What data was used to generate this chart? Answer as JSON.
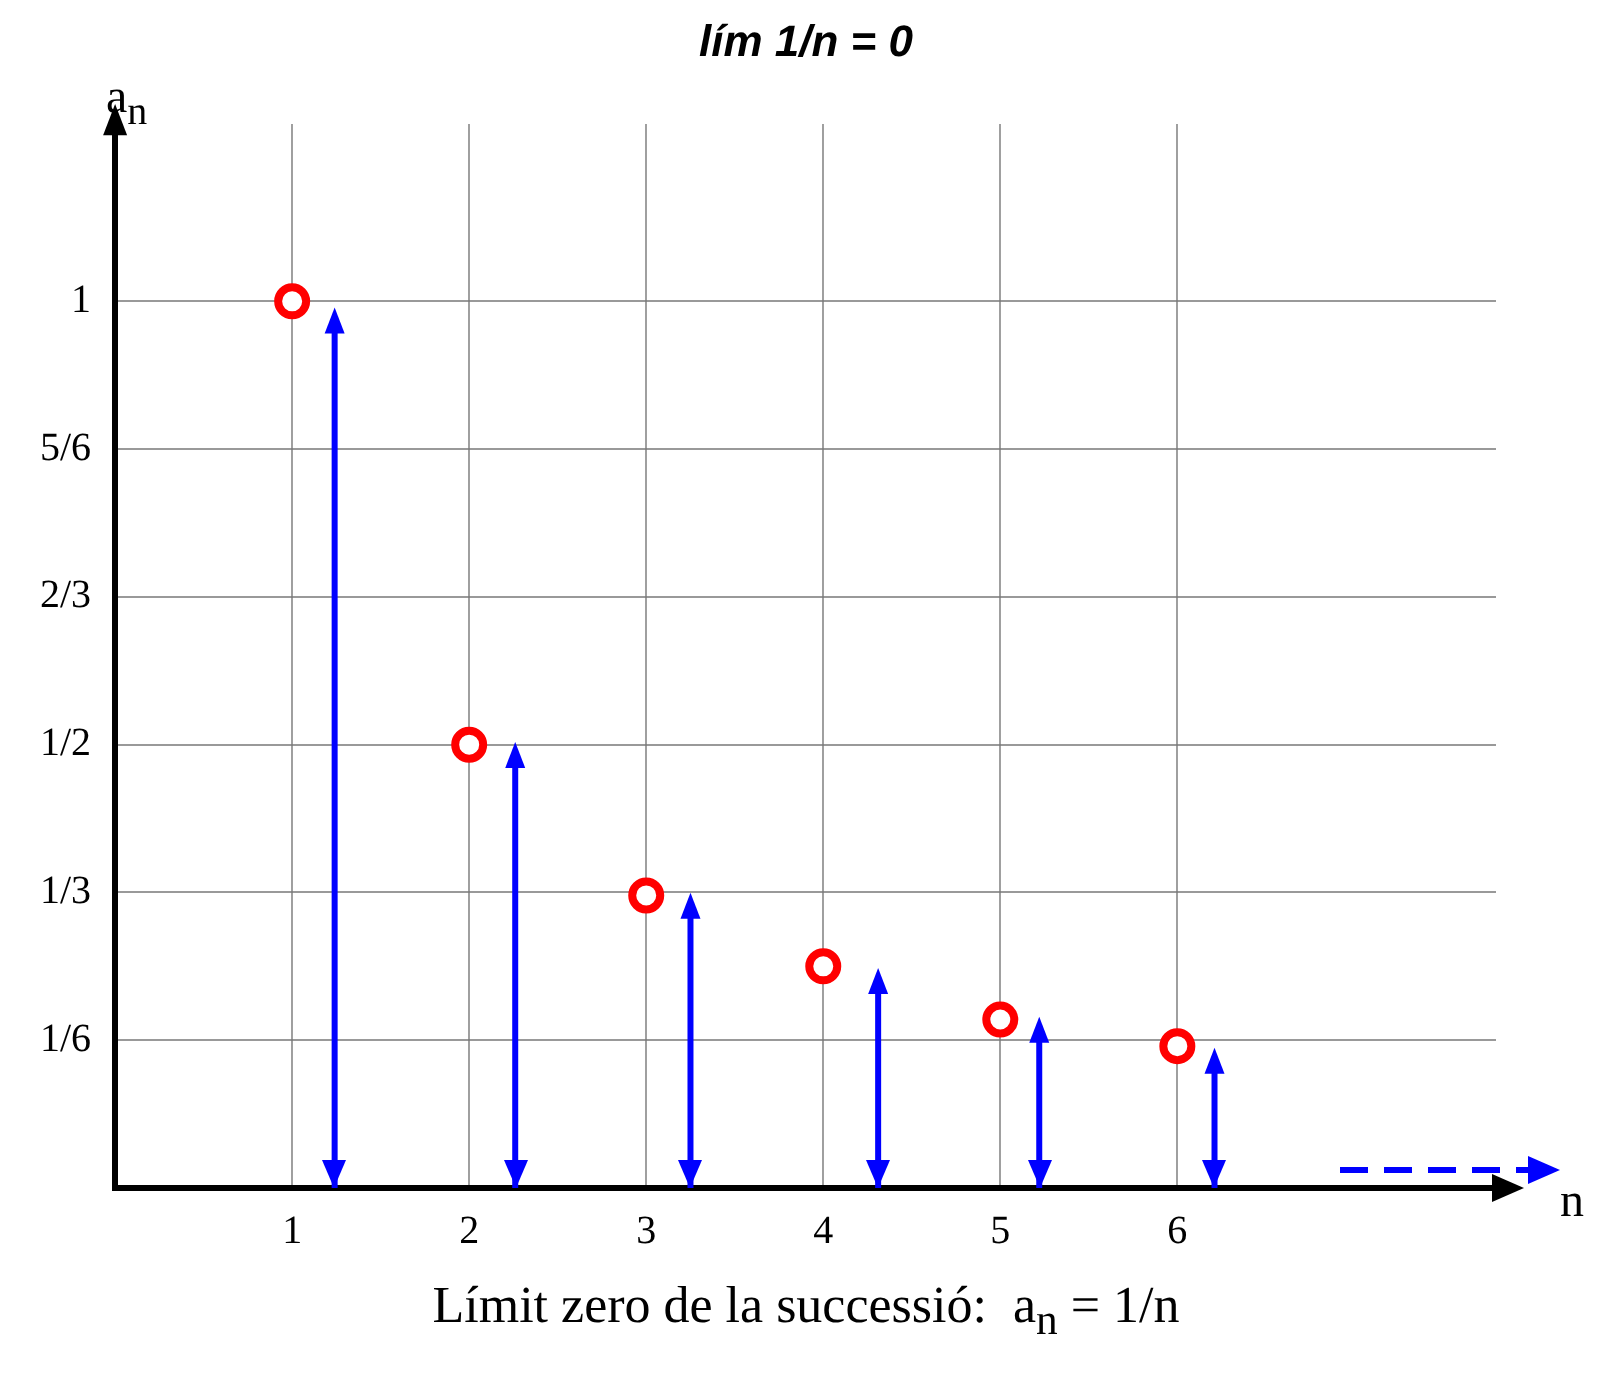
{
  "chart_data": {
    "type": "scatter",
    "title": "lím 1/n = 0",
    "xlabel": "n",
    "ylabel": "a$_{n}$",
    "annotations": [
      "Límit zero de la successió:  a$_{n}$ = 1/n"
    ],
    "xlim": [
      0,
      7.8
    ],
    "xticks": [
      1,
      2,
      3,
      4,
      5,
      6
    ],
    "ylim": [
      0,
      1.2
    ],
    "yticks": [
      {
        "value": 0.1667,
        "label": "1/6"
      },
      {
        "value": 0.3333,
        "label": "1/3"
      },
      {
        "value": 0.5,
        "label": "1/2"
      },
      {
        "value": 0.6667,
        "label": "2/3"
      },
      {
        "value": 0.8333,
        "label": "5/6"
      },
      {
        "value": 1,
        "label": "1"
      }
    ],
    "grid": true,
    "series": [
      {
        "type": "scatter",
        "marker": "circle",
        "color": "#ff0000",
        "x": [
          1,
          2,
          3,
          4,
          5,
          6
        ],
        "values": [
          1,
          0.5,
          0.33,
          0.25,
          0.19,
          0.16
        ]
      },
      {
        "type": "lollipop",
        "color": "#0000ff",
        "x": [
          1.24,
          2.26,
          3.25,
          4.31,
          5.22,
          6.21
        ],
        "values": [
          0.975,
          0.485,
          0.315,
          0.23,
          0.175,
          0.14
        ]
      }
    ]
  }
}
